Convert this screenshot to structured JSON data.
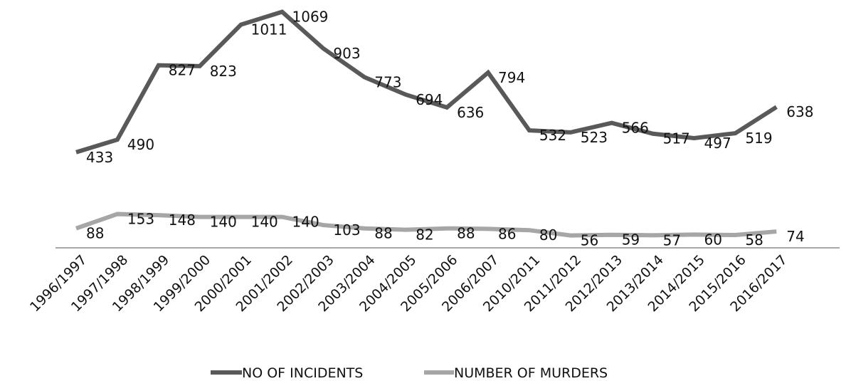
{
  "chart_data": {
    "type": "line",
    "categories": [
      "1996/1997",
      "1997/1998",
      "1998/1999",
      "1999/2000",
      "2000/2001",
      "2001/2002",
      "2002/2003",
      "2003/2004",
      "2004/2005",
      "2005/2006",
      "2006/2007",
      "2010/2011",
      "2011/2012",
      "2012/2013",
      "2013/2014",
      "2014/2015",
      "2015/2016",
      "2016/2017"
    ],
    "series": [
      {
        "name": "NO OF INCIDENTS",
        "color": "#595959",
        "values": [
          433,
          490,
          827,
          823,
          1011,
          1069,
          903,
          773,
          694,
          636,
          794,
          532,
          523,
          566,
          517,
          497,
          519,
          638
        ]
      },
      {
        "name": "NUMBER OF MURDERS",
        "color": "#a6a6a6",
        "values": [
          88,
          153,
          148,
          140,
          140,
          140,
          103,
          88,
          82,
          88,
          86,
          80,
          56,
          59,
          57,
          60,
          58,
          74
        ]
      }
    ],
    "title": "",
    "xlabel": "",
    "ylabel": "",
    "ylim": [
      0,
      1100
    ],
    "grid": false,
    "legend": "bottom"
  }
}
